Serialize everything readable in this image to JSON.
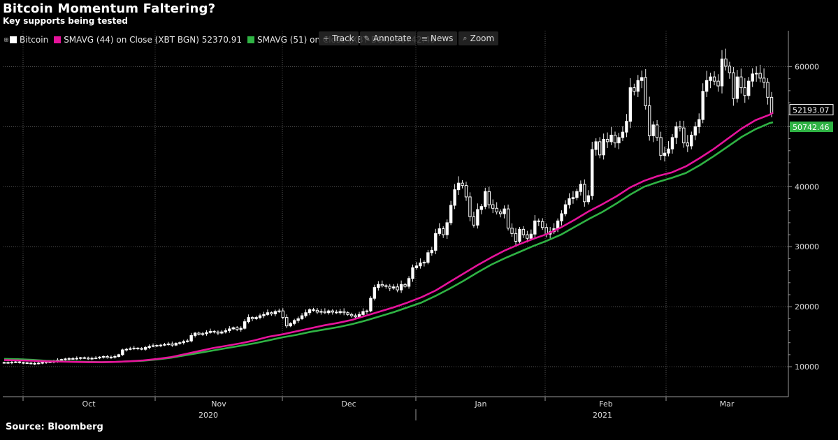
{
  "header": {
    "title": "Bitcoin Momentum Faltering?",
    "subtitle": "Key supports being tested"
  },
  "legend": {
    "expand_icon": "⊞",
    "items": [
      {
        "label": "Bitcoin",
        "color": "#ffffff"
      },
      {
        "label": "SMAVG (44)  on Close (XBT BGN) 52370.91",
        "color": "#e6139b"
      },
      {
        "label": "SMAVG (51)  on Close (XBT BGN) 50742.46",
        "color": "#2fb344"
      }
    ]
  },
  "toolbar": {
    "buttons": [
      {
        "label": "Track",
        "icon": "+"
      },
      {
        "label": "Annotate",
        "icon": "✎"
      },
      {
        "label": "News",
        "icon": "≡"
      },
      {
        "label": "Zoom",
        "icon": "⌕"
      }
    ]
  },
  "footer": {
    "source": "Source: Bloomberg"
  },
  "chart_data": {
    "type": "candlestick",
    "title": "Bitcoin Momentum Faltering?",
    "subtitle": "Key supports being tested",
    "ylim": [
      5000,
      66000
    ],
    "y_ticks": [
      "10000",
      "20000",
      "30000",
      "40000",
      "50000",
      "60000"
    ],
    "month_labels": [
      "Oct",
      "Nov",
      "Dec",
      "Jan",
      "Feb",
      "Mar"
    ],
    "year_labels": [
      "2020",
      "2021"
    ],
    "grid": true,
    "legend_position": "top-left",
    "last_values": {
      "bitcoin": "52193.07",
      "smavg_51": "50742.46"
    },
    "colors": {
      "bitcoin": "#ffffff",
      "smavg_44": "#e6139b",
      "smavg_51": "#2fb344"
    },
    "series": [
      {
        "name": "Bitcoin",
        "closes": [
          10700,
          10650,
          10750,
          10800,
          10700,
          10650,
          10600,
          10550,
          10500,
          10600,
          10700,
          10800,
          10750,
          10900,
          11100,
          11200,
          11300,
          11350,
          11300,
          11400,
          11500,
          11450,
          11300,
          11400,
          11450,
          11600,
          11700,
          11500,
          11600,
          11700,
          12000,
          12800,
          12900,
          13000,
          13100,
          13050,
          12900,
          13200,
          13400,
          13500,
          13550,
          13600,
          13700,
          13800,
          13600,
          13900,
          14000,
          14200,
          14300,
          15200,
          15600,
          15400,
          15500,
          15700,
          15900,
          15800,
          15600,
          15800,
          16000,
          16300,
          16500,
          16200,
          16400,
          17500,
          18200,
          18000,
          18200,
          18500,
          18700,
          19000,
          18800,
          19200,
          19300,
          18200,
          16800,
          17200,
          17700,
          18000,
          18500,
          19000,
          19500,
          19400,
          19100,
          19200,
          19000,
          19300,
          19100,
          19000,
          19200,
          19000,
          18700,
          18500,
          18300,
          18700,
          19200,
          19300,
          21400,
          23200,
          23700,
          23500,
          23400,
          23100,
          23300,
          22800,
          23700,
          23400,
          24700,
          26500,
          26800,
          27300,
          27400,
          29000,
          29400,
          32200,
          33000,
          32000,
          34000,
          36900,
          39500,
          40600,
          40200,
          38300,
          35000,
          33600,
          36200,
          36700,
          39200,
          37000,
          36400,
          35800,
          35500,
          36300,
          33100,
          32200,
          30900,
          32900,
          32000,
          31400,
          32100,
          34300,
          34200,
          33200,
          32100,
          32500,
          33000,
          34300,
          35500,
          37000,
          38000,
          38200,
          39200,
          40400,
          37500,
          38500,
          46200,
          47500,
          45300,
          47900,
          47500,
          48600,
          47300,
          48200,
          49100,
          50900,
          56500,
          55900,
          57700,
          58200,
          53500,
          48500,
          50300,
          48200,
          45200,
          45600,
          46300,
          48200,
          50000,
          49800,
          47300,
          46800,
          48600,
          50000,
          51200,
          55900,
          57700,
          58300,
          57600,
          56800,
          61300,
          60100,
          59000,
          54700,
          58300,
          56500,
          55200,
          57600,
          58800,
          58900,
          58100,
          57400,
          54900,
          52200
        ]
      },
      {
        "name": "SMAVG (44)  on Close (XBT BGN) 52370.91",
        "points": [
          [
            0,
            11100
          ],
          [
            20,
            11050
          ],
          [
            40,
            11000
          ],
          [
            60,
            10900
          ],
          [
            80,
            10850
          ],
          [
            100,
            10800
          ],
          [
            120,
            10750
          ],
          [
            140,
            10750
          ],
          [
            160,
            10800
          ],
          [
            180,
            10900
          ],
          [
            200,
            11050
          ],
          [
            220,
            11300
          ],
          [
            240,
            11600
          ],
          [
            260,
            12100
          ],
          [
            280,
            12600
          ],
          [
            300,
            13100
          ],
          [
            320,
            13500
          ],
          [
            340,
            13900
          ],
          [
            360,
            14400
          ],
          [
            380,
            15000
          ],
          [
            400,
            15400
          ],
          [
            420,
            15900
          ],
          [
            440,
            16400
          ],
          [
            460,
            16900
          ],
          [
            480,
            17300
          ],
          [
            500,
            17800
          ],
          [
            520,
            18500
          ],
          [
            540,
            19200
          ],
          [
            560,
            19900
          ],
          [
            580,
            20700
          ],
          [
            600,
            21600
          ],
          [
            620,
            22700
          ],
          [
            640,
            24100
          ],
          [
            660,
            25500
          ],
          [
            680,
            26900
          ],
          [
            700,
            28200
          ],
          [
            720,
            29400
          ],
          [
            740,
            30400
          ],
          [
            760,
            31300
          ],
          [
            780,
            32100
          ],
          [
            800,
            33200
          ],
          [
            820,
            34500
          ],
          [
            840,
            35900
          ],
          [
            860,
            37100
          ],
          [
            880,
            38400
          ],
          [
            900,
            39900
          ],
          [
            920,
            41000
          ],
          [
            940,
            41800
          ],
          [
            960,
            42400
          ],
          [
            980,
            43400
          ],
          [
            1000,
            44800
          ],
          [
            1020,
            46300
          ],
          [
            1040,
            48000
          ],
          [
            1060,
            49700
          ],
          [
            1080,
            51100
          ],
          [
            1100,
            52000
          ],
          [
            1105,
            52370.91
          ]
        ]
      },
      {
        "name": "SMAVG (51)  on Close (XBT BGN) 50742.46",
        "points": [
          [
            0,
            11300
          ],
          [
            20,
            11250
          ],
          [
            40,
            11150
          ],
          [
            60,
            11000
          ],
          [
            80,
            10900
          ],
          [
            100,
            10850
          ],
          [
            120,
            10800
          ],
          [
            140,
            10750
          ],
          [
            160,
            10800
          ],
          [
            180,
            10900
          ],
          [
            200,
            11000
          ],
          [
            220,
            11200
          ],
          [
            240,
            11500
          ],
          [
            260,
            11900
          ],
          [
            280,
            12300
          ],
          [
            300,
            12700
          ],
          [
            320,
            13100
          ],
          [
            340,
            13500
          ],
          [
            360,
            13900
          ],
          [
            380,
            14400
          ],
          [
            400,
            14900
          ],
          [
            420,
            15300
          ],
          [
            440,
            15800
          ],
          [
            460,
            16200
          ],
          [
            480,
            16600
          ],
          [
            500,
            17100
          ],
          [
            520,
            17700
          ],
          [
            540,
            18400
          ],
          [
            560,
            19100
          ],
          [
            580,
            19900
          ],
          [
            600,
            20700
          ],
          [
            620,
            21800
          ],
          [
            640,
            23000
          ],
          [
            660,
            24300
          ],
          [
            680,
            25700
          ],
          [
            700,
            27000
          ],
          [
            720,
            28100
          ],
          [
            740,
            29100
          ],
          [
            760,
            30100
          ],
          [
            780,
            31000
          ],
          [
            800,
            32000
          ],
          [
            820,
            33300
          ],
          [
            840,
            34600
          ],
          [
            860,
            35800
          ],
          [
            880,
            37200
          ],
          [
            900,
            38700
          ],
          [
            920,
            40000
          ],
          [
            940,
            40800
          ],
          [
            960,
            41500
          ],
          [
            980,
            42300
          ],
          [
            1000,
            43600
          ],
          [
            1020,
            45100
          ],
          [
            1040,
            46700
          ],
          [
            1060,
            48300
          ],
          [
            1080,
            49600
          ],
          [
            1100,
            50600
          ],
          [
            1105,
            50742.46
          ]
        ]
      }
    ]
  }
}
